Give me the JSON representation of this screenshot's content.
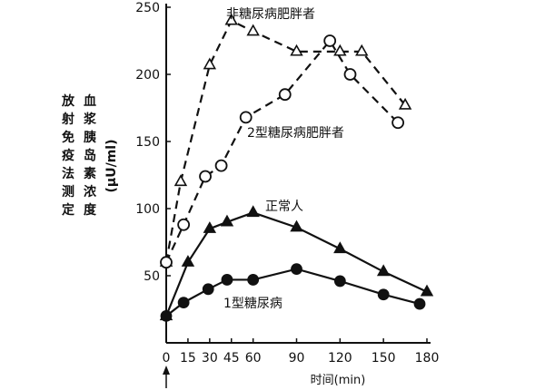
{
  "chart_data": {
    "type": "line",
    "ylabel": [
      "放射免疫法测定",
      "血浆胰岛素浓度",
      "(μU/ml)"
    ],
    "xlabel": "时间(min)",
    "xlim": [
      0,
      180
    ],
    "ylim": [
      0,
      250
    ],
    "xticks": [
      0,
      15,
      30,
      45,
      60,
      90,
      120,
      150,
      180
    ],
    "yticks": [
      50,
      100,
      150,
      200,
      250
    ],
    "grid": false,
    "arrow_at_x": 0,
    "series": [
      {
        "name": "非糖尿病肥胖者",
        "marker": "triangle-open",
        "line": "dashed",
        "x": [
          0,
          10,
          30,
          45,
          60,
          90,
          120,
          135,
          165
        ],
        "y": [
          60,
          120,
          207,
          240,
          232,
          217,
          217,
          217,
          177
        ]
      },
      {
        "name": "2型糖尿病肥胖者",
        "marker": "circle-open",
        "line": "dashed",
        "x": [
          0,
          12,
          27,
          38,
          55,
          82,
          113,
          127,
          160
        ],
        "y": [
          60,
          88,
          124,
          132,
          168,
          185,
          225,
          200,
          164
        ]
      },
      {
        "name": "正常人",
        "marker": "triangle-filled",
        "line": "solid",
        "x": [
          0,
          15,
          30,
          42,
          60,
          90,
          120,
          150,
          180
        ],
        "y": [
          20,
          60,
          85,
          90,
          97,
          86,
          70,
          53,
          38
        ]
      },
      {
        "name": "1型糖尿病",
        "marker": "circle-filled",
        "line": "solid",
        "x": [
          0,
          12,
          29,
          42,
          60,
          90,
          120,
          150,
          175
        ],
        "y": [
          20,
          30,
          40,
          47,
          47,
          55,
          46,
          36,
          29
        ]
      }
    ]
  }
}
